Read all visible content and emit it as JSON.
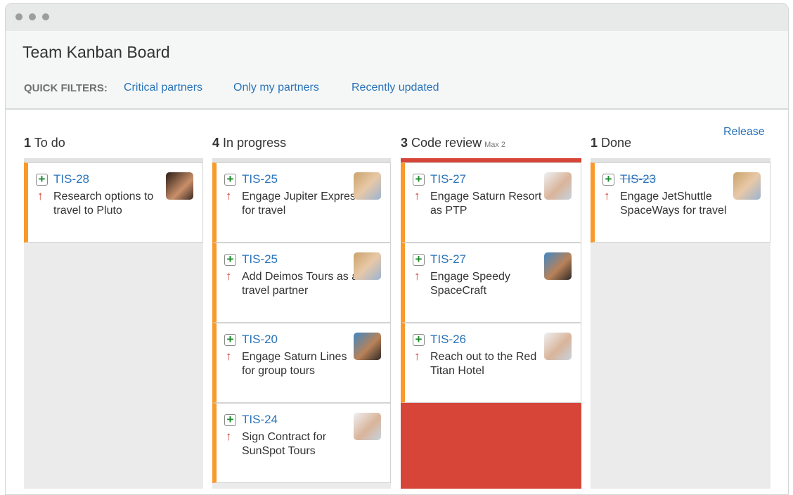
{
  "window": {
    "title": "Team Kanban Board"
  },
  "quick_filters": {
    "label": "QUICK FILTERS:",
    "items": [
      "Critical partners",
      "Only my partners",
      "Recently updated"
    ]
  },
  "release_label": "Release",
  "colors": {
    "accent": "#2a73b9",
    "priority_bar": "#f89a2c",
    "over_limit": "#d64537"
  },
  "columns": [
    {
      "count": "1",
      "name": "To do",
      "max": "",
      "cards": [
        {
          "key": "TIS-28",
          "summary": "Research options to travel to Pluto",
          "avatar": "woman-dark-hair"
        }
      ]
    },
    {
      "count": "4",
      "name": "In progress",
      "max": "",
      "cards": [
        {
          "key": "TIS-25",
          "summary": "Engage Jupiter Express for travel",
          "avatar": "woman-blonde"
        },
        {
          "key": "TIS-25",
          "summary": "Add Deimos Tours as a travel partner",
          "avatar": "woman-blonde"
        },
        {
          "key": "TIS-20",
          "summary": "Engage Saturn Lines for group tours",
          "avatar": "man-sunglasses"
        },
        {
          "key": "TIS-24",
          "summary": "Sign Contract for SunSpot Tours",
          "avatar": "man-bald"
        }
      ]
    },
    {
      "count": "3",
      "name": "Code review",
      "max": "Max 2",
      "cards": [
        {
          "key": "TIS-27",
          "summary": "Engage Saturn Resort as PTP",
          "avatar": "man-bald"
        },
        {
          "key": "TIS-27",
          "summary": "Engage Speedy SpaceCraft",
          "avatar": "man-sunglasses"
        },
        {
          "key": "TIS-26",
          "summary": "Reach out to the Red Titan Hotel",
          "avatar": "man-bald"
        }
      ]
    },
    {
      "count": "1",
      "name": "Done",
      "max": "",
      "cards": [
        {
          "key": "TIS-23",
          "summary": "Engage JetShuttle SpaceWays for travel",
          "avatar": "woman-blonde",
          "done": true
        }
      ]
    }
  ]
}
